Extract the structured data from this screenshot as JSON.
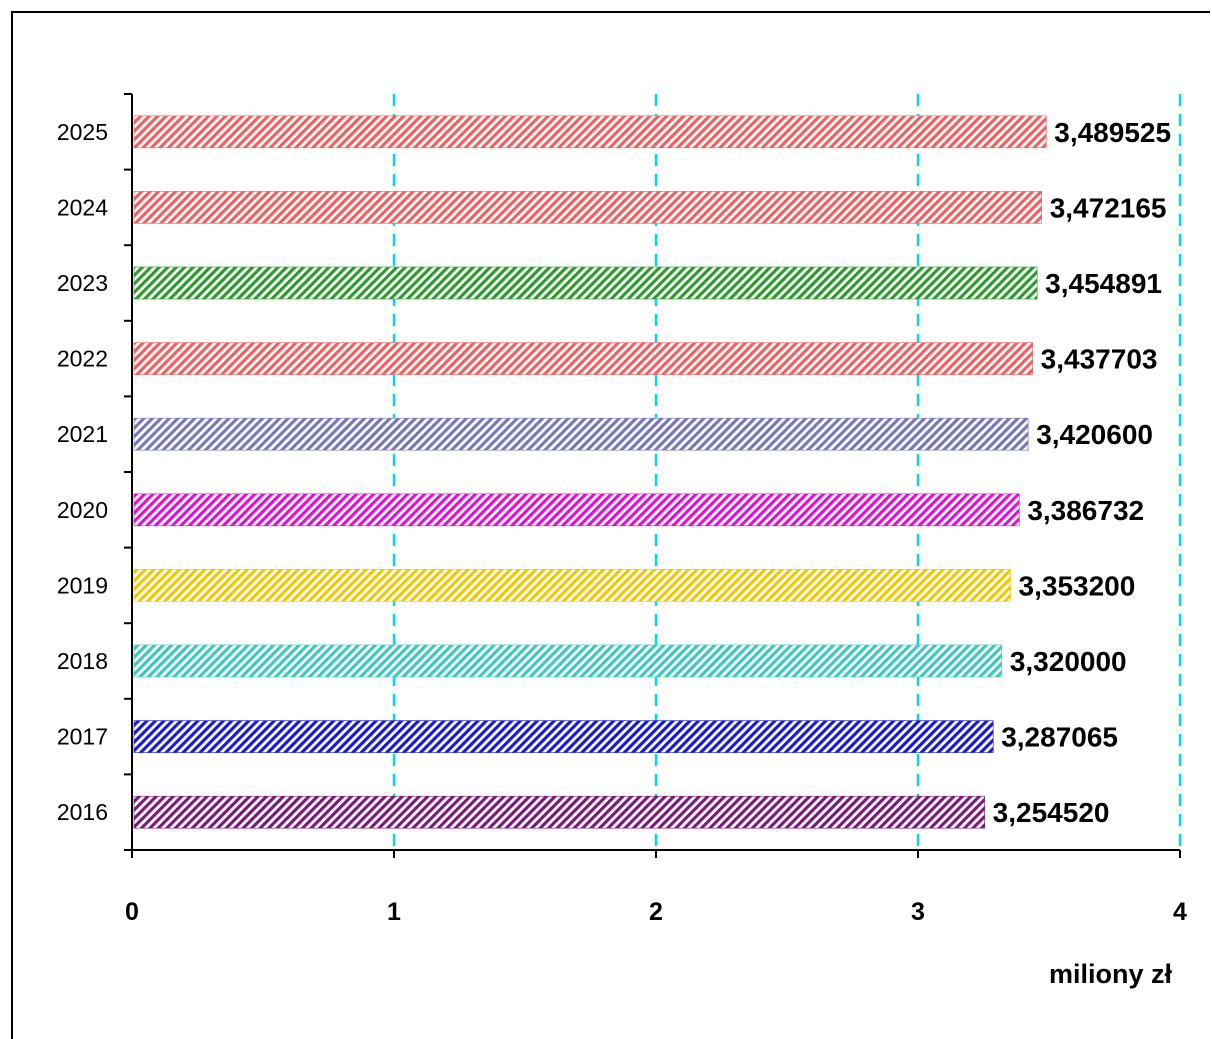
{
  "chart_data": {
    "type": "bar",
    "orientation": "horizontal",
    "categories": [
      "2016",
      "2017",
      "2018",
      "2019",
      "2020",
      "2021",
      "2022",
      "2023",
      "2024",
      "2025"
    ],
    "values": [
      3.25452,
      3.287065,
      3.32,
      3.3532,
      3.386732,
      3.4206,
      3.437703,
      3.454891,
      3.472165,
      3.489525
    ],
    "data_labels": [
      "3,254520",
      "3,287065",
      "3,320000",
      "3,353200",
      "3,386732",
      "3,420600",
      "3,437703",
      "3,454891",
      "3,472165",
      "3,489525"
    ],
    "colors": [
      "#7a1a7a",
      "#1a1ad0",
      "#3cc8c0",
      "#f0c800",
      "#e010d8",
      "#7878b8",
      "#f06060",
      "#2c9a2c",
      "#f06060",
      "#f06060"
    ],
    "x_ticks": [
      "0",
      "1",
      "2",
      "3",
      "4"
    ],
    "xlim": [
      0,
      4
    ],
    "xlabel": "miliony zł",
    "title": "",
    "ylabel": "",
    "grid": "vertical dashed",
    "grid_color": "#00d8f0",
    "legend": "none"
  }
}
